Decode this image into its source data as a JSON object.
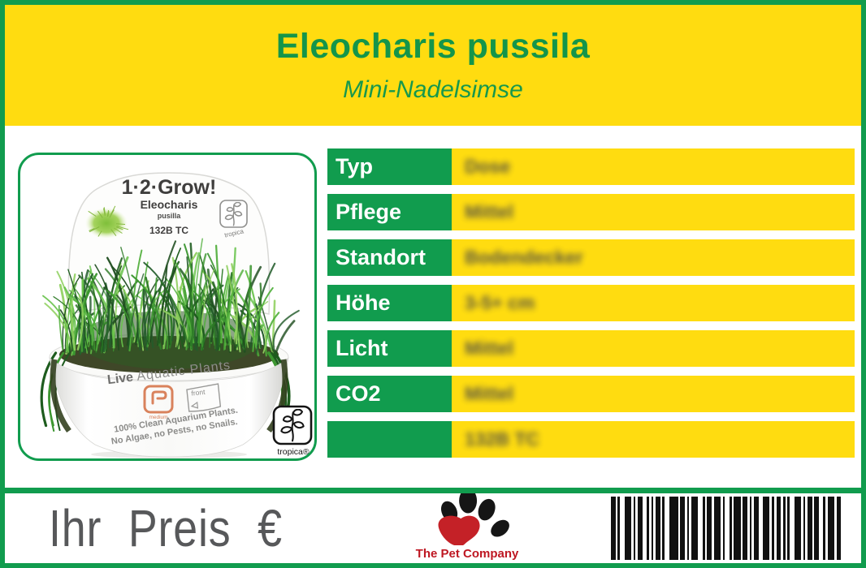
{
  "header": {
    "title": "Eleocharis pussila",
    "subtitle": "Mini-Nadelsimse"
  },
  "table": {
    "rows": [
      {
        "label": "Typ",
        "value": "Dose"
      },
      {
        "label": "Pflege",
        "value": "Mittel"
      },
      {
        "label": "Standort",
        "value": "Bodendecker"
      },
      {
        "label": "Höhe",
        "value": "3-5+ cm"
      },
      {
        "label": "Licht",
        "value": "Mittel"
      },
      {
        "label": "CO2",
        "value": "Mittel"
      },
      {
        "label": "",
        "value": "132B TC"
      }
    ]
  },
  "photo": {
    "brand": "1·2·Grow!",
    "species": "Eleocharis",
    "variety": "pusilla",
    "sku": "132B TC",
    "cup_live": "Live",
    "cup_rest": " Aquatic Plants",
    "size_tag": "medium",
    "front_tag": "front",
    "claim_line1": "100% Clean Aquarium Plants.",
    "claim_line2": "No Algae, no Pests, no Snails.",
    "tropica_small": "tropica",
    "tropica_big": "tropica®"
  },
  "footer": {
    "price_label": "Ihr Preis €",
    "company": "The Pet Company"
  },
  "colors": {
    "green": "#119C4E",
    "yellow": "#FFDC10",
    "title_green": "#14954A",
    "price_gray": "#57585A",
    "company_red": "#BE1722"
  },
  "barcode": {
    "pattern": [
      2,
      1,
      1,
      2,
      3,
      1,
      1,
      1,
      2,
      2,
      1,
      1,
      1,
      1,
      2,
      1,
      1,
      2,
      4,
      1,
      2,
      1,
      1,
      1,
      3,
      2,
      1,
      1,
      2,
      1,
      3,
      1,
      1,
      2,
      1,
      1,
      3,
      1,
      2,
      1,
      1,
      1,
      2,
      2,
      3,
      1,
      1,
      1,
      2,
      1,
      1,
      1,
      1,
      2,
      3,
      1,
      1,
      1,
      2,
      1,
      2,
      2,
      1,
      1,
      3,
      1,
      2
    ]
  }
}
